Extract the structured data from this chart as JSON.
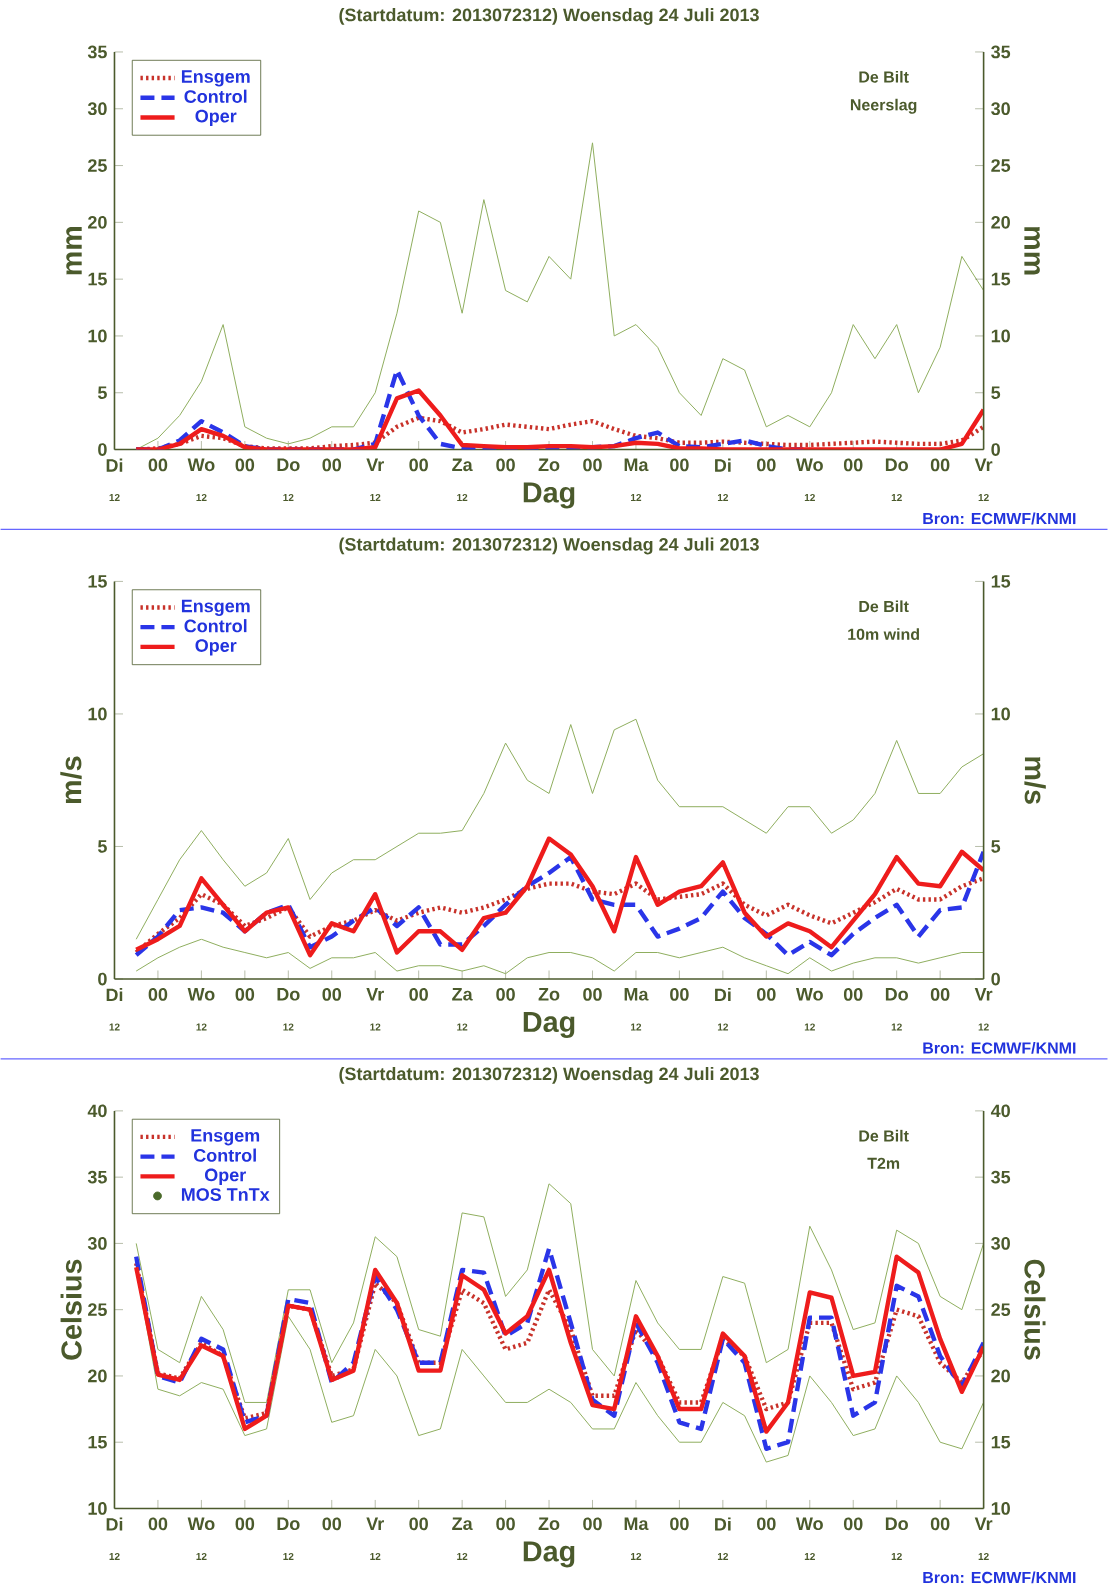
{
  "chart_data": [
    {
      "type": "line",
      "title": "(Startdatum: 2013072312)   Woensdag  24 Juli     2013",
      "xlabel": "Dag",
      "ylabel": "mm",
      "y2label": "mm",
      "annotations": [
        "De Bilt",
        "Neerslag",
        "Bron: ECMWF/KNMI",
        "12",
        "12",
        "12",
        "12",
        "12",
        "12",
        "12",
        "12",
        "12",
        "12"
      ],
      "categories": [
        "Di",
        null,
        "00",
        null,
        "Wo",
        null,
        "00",
        null,
        "Do",
        null,
        "00",
        null,
        "Vr",
        null,
        "00",
        null,
        "Za",
        null,
        "00",
        null,
        "Zo",
        null,
        "00",
        null,
        "Ma",
        null,
        "00",
        null,
        "Di",
        null,
        "00",
        null,
        "Wo",
        null,
        "00",
        null,
        "Do",
        null,
        "00",
        null,
        "Vr"
      ],
      "ylim": [
        0,
        35
      ],
      "yticks": [
        0,
        5,
        10,
        15,
        20,
        25,
        30,
        35
      ],
      "y2lim": [
        0,
        35
      ],
      "y2ticks": [
        0,
        5,
        10,
        15,
        20,
        25,
        30,
        35
      ],
      "legend": "top left",
      "series": [
        {
          "color": "#8fae5e",
          "line_style": "solid",
          "values": [
            null,
            0,
            1,
            3,
            6,
            11,
            2,
            1,
            0.5,
            1,
            2,
            2,
            5,
            12,
            21,
            20,
            12,
            22,
            14,
            13,
            17,
            15,
            27,
            10,
            11,
            9,
            5,
            3,
            8,
            7,
            2,
            3,
            2,
            5,
            11,
            8,
            11,
            5,
            9,
            17,
            14
          ]
        },
        {
          "name": "Ensgem",
          "color": "#c8322a",
          "line_style": "dotted",
          "values": [
            null,
            0,
            0.1,
            0.5,
            1.2,
            1.0,
            0.3,
            0.1,
            0.1,
            0.1,
            0.3,
            0.4,
            0.6,
            2.0,
            2.8,
            2.5,
            1.5,
            1.8,
            2.2,
            2.0,
            1.8,
            2.2,
            2.5,
            1.8,
            1.2,
            1.0,
            0.6,
            0.6,
            0.7,
            0.6,
            0.5,
            0.4,
            0.4,
            0.5,
            0.6,
            0.7,
            0.6,
            0.5,
            0.5,
            0.8,
            2.0
          ]
        },
        {
          "name": "Control",
          "color": "#2a35e8",
          "line_style": "dashed",
          "values": [
            null,
            0,
            0,
            0.8,
            2.5,
            1.5,
            0.3,
            0,
            0,
            0,
            0,
            0,
            0.5,
            7.0,
            3.0,
            0.5,
            0.1,
            0.1,
            0.1,
            0.1,
            0.2,
            0.2,
            0.2,
            0.3,
            1.0,
            1.5,
            0.3,
            0.2,
            0.5,
            0.8,
            0.3,
            0,
            0,
            null,
            null,
            null,
            null,
            null,
            null,
            null,
            null
          ]
        },
        {
          "name": "Oper",
          "color": "#ee1c1c",
          "line_style": "solid",
          "values": [
            null,
            0,
            0,
            0.5,
            1.8,
            1.2,
            0.2,
            0,
            0,
            0,
            0,
            0,
            0.2,
            4.5,
            5.2,
            3.0,
            0.4,
            0.3,
            0.2,
            0.2,
            0.3,
            0.3,
            0.2,
            0.3,
            0.6,
            0.5,
            0.1,
            0.1,
            0,
            0,
            0,
            0,
            0,
            0,
            0,
            0,
            0,
            0,
            0,
            0.5,
            3.5
          ]
        }
      ]
    },
    {
      "type": "line",
      "title": "(Startdatum: 2013072312)   Woensdag  24 Juli     2013",
      "xlabel": "Dag",
      "ylabel": "m/s",
      "y2label": "m/s",
      "annotations": [
        "De Bilt",
        "10m wind",
        "Bron: ECMWF/KNMI",
        "12",
        "12",
        "12",
        "12",
        "12",
        "12",
        "12",
        "12",
        "12",
        "12"
      ],
      "categories": [
        "Di",
        null,
        "00",
        null,
        "Wo",
        null,
        "00",
        null,
        "Do",
        null,
        "00",
        null,
        "Vr",
        null,
        "00",
        null,
        "Za",
        null,
        "00",
        null,
        "Zo",
        null,
        "00",
        null,
        "Ma",
        null,
        "00",
        null,
        "Di",
        null,
        "00",
        null,
        "Wo",
        null,
        "00",
        null,
        "Do",
        null,
        "00",
        null,
        "Vr"
      ],
      "ylim": [
        0,
        15
      ],
      "yticks": [
        0,
        5,
        10,
        15
      ],
      "y2lim": [
        0,
        15
      ],
      "y2ticks": [
        0,
        5,
        10,
        15
      ],
      "legend": "top left",
      "series": [
        {
          "color": "#8fae5e",
          "line_style": "solid",
          "values": [
            null,
            1.5,
            3,
            4.5,
            5.6,
            4.5,
            3.5,
            4,
            5.3,
            3,
            4,
            4.5,
            4.5,
            5,
            5.5,
            5.5,
            5.6,
            7,
            8.9,
            7.5,
            7,
            9.6,
            7,
            9.4,
            9.8,
            7.5,
            6.5,
            6.5,
            6.5,
            6,
            5.5,
            6.5,
            6.5,
            5.5,
            6,
            7,
            9.0,
            7,
            7,
            8,
            8.5
          ]
        },
        {
          "color": "#8fae5e",
          "line_style": "solid",
          "values": [
            null,
            0.3,
            0.8,
            1.2,
            1.5,
            1.2,
            1.0,
            0.8,
            1.0,
            0.4,
            0.8,
            0.8,
            1.0,
            0.3,
            0.5,
            0.5,
            0.3,
            0.5,
            0.2,
            0.8,
            1.0,
            1.0,
            0.8,
            0.3,
            1.0,
            1.0,
            0.8,
            1.0,
            1.2,
            0.8,
            0.5,
            0.2,
            0.8,
            0.3,
            0.6,
            0.8,
            0.8,
            0.6,
            0.8,
            1.0,
            1.0
          ]
        },
        {
          "name": "Ensgem",
          "color": "#c8322a",
          "line_style": "dotted",
          "values": [
            null,
            1.0,
            1.7,
            2.3,
            3.2,
            2.8,
            2.0,
            2.3,
            2.7,
            1.6,
            2.0,
            2.2,
            2.6,
            2.2,
            2.5,
            2.7,
            2.5,
            2.7,
            3.0,
            3.4,
            3.6,
            3.6,
            3.3,
            3.2,
            3.6,
            3.0,
            3.1,
            3.2,
            3.6,
            2.8,
            2.4,
            2.8,
            2.4,
            2.1,
            2.5,
            2.9,
            3.4,
            3.0,
            3.0,
            3.5,
            3.8
          ]
        },
        {
          "name": "Control",
          "color": "#2a35e8",
          "line_style": "dashed",
          "values": [
            null,
            0.9,
            1.6,
            2.6,
            2.7,
            2.5,
            1.8,
            2.5,
            2.8,
            1.2,
            1.6,
            2.2,
            2.7,
            2.0,
            2.7,
            1.3,
            1.3,
            2.0,
            2.8,
            3.5,
            4.0,
            4.6,
            3.0,
            2.8,
            2.8,
            1.6,
            1.9,
            2.3,
            3.3,
            2.3,
            1.7,
            0.9,
            1.4,
            0.9,
            1.7,
            2.3,
            2.8,
            1.6,
            2.6,
            2.7,
            4.8
          ]
        },
        {
          "name": "Oper",
          "color": "#ee1c1c",
          "line_style": "solid",
          "values": [
            null,
            1.1,
            1.5,
            2.0,
            3.8,
            2.8,
            1.8,
            2.5,
            2.7,
            0.9,
            2.1,
            1.8,
            3.2,
            1.0,
            1.8,
            1.8,
            1.1,
            2.3,
            2.5,
            3.5,
            5.3,
            4.7,
            3.5,
            1.8,
            4.6,
            2.8,
            3.3,
            3.5,
            4.4,
            2.5,
            1.6,
            2.1,
            1.8,
            1.2,
            2.2,
            3.2,
            4.6,
            3.6,
            3.5,
            4.8,
            4.1
          ]
        }
      ]
    },
    {
      "type": "line",
      "title": "(Startdatum: 2013072312)   Woensdag  24 Juli     2013",
      "xlabel": "Dag",
      "ylabel": "Celsius",
      "y2label": "Celsius",
      "annotations": [
        "De Bilt",
        "T2m",
        "Bron: ECMWF/KNMI",
        "12",
        "12",
        "12",
        "12",
        "12",
        "12",
        "12",
        "12",
        "12",
        "12"
      ],
      "categories": [
        "Di",
        null,
        "00",
        null,
        "Wo",
        null,
        "00",
        null,
        "Do",
        null,
        "00",
        null,
        "Vr",
        null,
        "00",
        null,
        "Za",
        null,
        "00",
        null,
        "Zo",
        null,
        "00",
        null,
        "Ma",
        null,
        "00",
        null,
        "Di",
        null,
        "00",
        null,
        "Wo",
        null,
        "00",
        null,
        "Do",
        null,
        "00",
        null,
        "Vr"
      ],
      "ylim": [
        10,
        40
      ],
      "yticks": [
        10,
        15,
        20,
        25,
        30,
        35,
        40
      ],
      "y2lim": [
        10,
        40
      ],
      "y2ticks": [
        10,
        15,
        20,
        25,
        30,
        35,
        40
      ],
      "legend": "top left",
      "series": [
        {
          "color": "#8fae5e",
          "line_style": "solid",
          "values": [
            null,
            30,
            22,
            21,
            26,
            23.5,
            18,
            18,
            26.5,
            26.5,
            21,
            24,
            30.5,
            29,
            23.5,
            23,
            32.3,
            32,
            26,
            28,
            34.5,
            33,
            22,
            20,
            27.2,
            24,
            22,
            22,
            27.5,
            27,
            21,
            22,
            31.3,
            28,
            23.5,
            24,
            31,
            30,
            26,
            25,
            30
          ]
        },
        {
          "color": "#8fae5e",
          "line_style": "solid",
          "values": [
            null,
            28,
            19,
            18.5,
            19.5,
            19,
            15.5,
            16,
            24.5,
            22,
            16.5,
            17,
            22,
            20,
            15.5,
            16,
            22,
            20,
            18,
            18,
            19,
            18,
            16,
            16,
            19.5,
            17,
            15,
            15,
            18,
            17,
            13.5,
            14,
            20,
            18,
            15.5,
            16,
            20,
            18,
            15,
            14.5,
            18
          ]
        },
        {
          "name": "Ensgem",
          "color": "#c8322a",
          "line_style": "dotted",
          "values": [
            null,
            28.5,
            20.2,
            19.8,
            22.5,
            21.5,
            16.8,
            17.2,
            25.3,
            25.0,
            20.0,
            20.5,
            27.0,
            25.5,
            21.0,
            21.0,
            26.5,
            25.5,
            22.0,
            22.5,
            26.5,
            23.5,
            18.5,
            18.5,
            23.5,
            21.5,
            18.0,
            18.0,
            22.8,
            21.5,
            17.5,
            18.0,
            24.0,
            24.0,
            19.0,
            19.5,
            25.0,
            24.5,
            21.0,
            19.5,
            22.0
          ]
        },
        {
          "name": "Control",
          "color": "#2a35e8",
          "line_style": "dashed",
          "values": [
            null,
            29.0,
            20.0,
            19.5,
            22.8,
            22.0,
            16.5,
            17.0,
            25.8,
            25.5,
            19.5,
            21.0,
            27.5,
            25.0,
            21.0,
            21.0,
            28.0,
            27.8,
            23.0,
            24.0,
            29.6,
            24.0,
            18.2,
            17.0,
            24.0,
            21.0,
            16.5,
            16.0,
            22.8,
            21.0,
            14.5,
            15.0,
            24.4,
            24.4,
            17.0,
            18.0,
            26.8,
            26.0,
            21.5,
            19.2,
            22.5
          ]
        },
        {
          "name": "Oper",
          "color": "#ee1c1c",
          "line_style": "solid",
          "values": [
            null,
            28.2,
            20.1,
            19.7,
            22.3,
            21.5,
            16.0,
            17.0,
            25.3,
            25.0,
            19.7,
            20.4,
            28.0,
            25.5,
            20.4,
            20.4,
            27.6,
            26.5,
            23.2,
            24.5,
            28.0,
            22.5,
            17.8,
            17.5,
            24.5,
            21.5,
            17.5,
            17.5,
            23.2,
            21.5,
            15.8,
            18.0,
            26.3,
            25.9,
            20.0,
            20.3,
            29.0,
            27.8,
            22.8,
            18.8,
            22.2
          ]
        },
        {
          "name": "MOS TnTx",
          "type": "scatter",
          "color": "#4a6a2a",
          "values": [
            null,
            null,
            null,
            null,
            null,
            null,
            null,
            null,
            null,
            null,
            null,
            null,
            null,
            null,
            null,
            null,
            null,
            null,
            null,
            null,
            null,
            null,
            null,
            null,
            null,
            null,
            null,
            null,
            null,
            null,
            null,
            null,
            null,
            null,
            null,
            null,
            null,
            null,
            null,
            null,
            null
          ]
        }
      ]
    }
  ]
}
